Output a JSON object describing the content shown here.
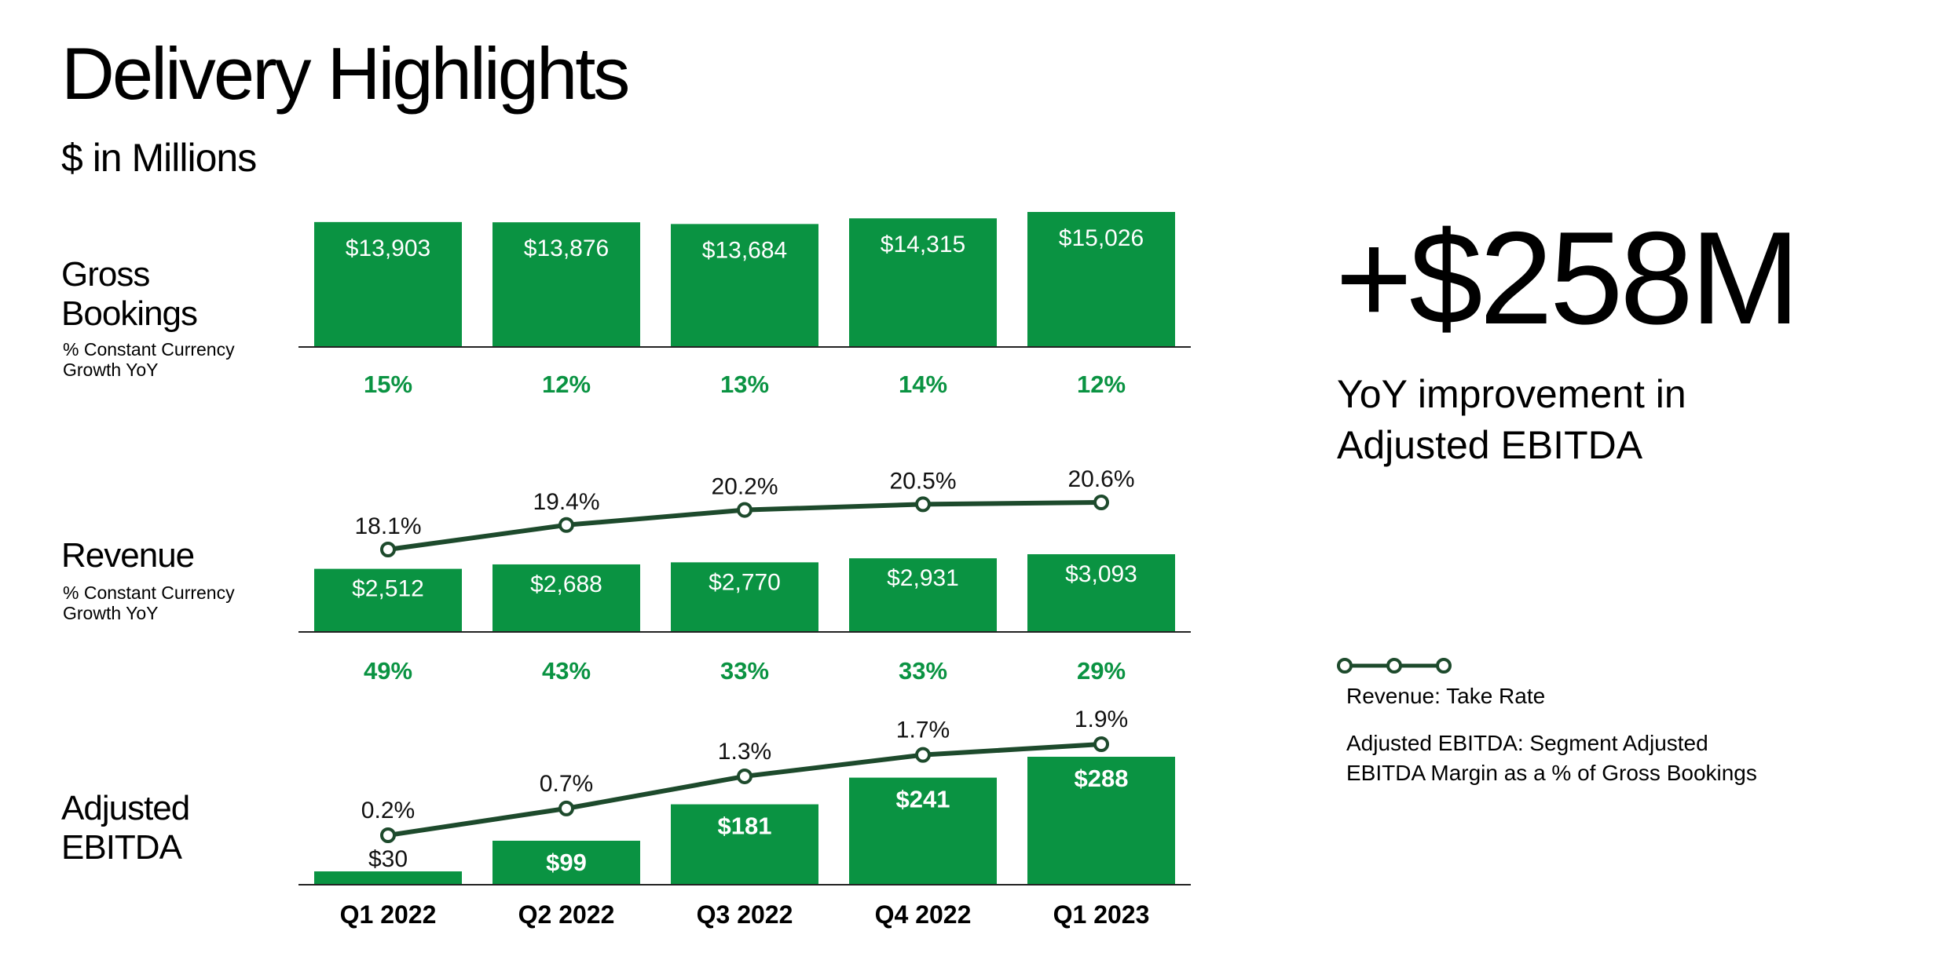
{
  "page": {
    "title": "Delivery Highlights",
    "subtitle": "$ in Millions",
    "row_labels": {
      "gross_bookings_line1": "Gross",
      "gross_bookings_line2": "Bookings",
      "gross_bookings_sub_line1": "% Constant Currency",
      "gross_bookings_sub_line2": "Growth YoY",
      "revenue": "Revenue",
      "revenue_sub_line1": "% Constant Currency",
      "revenue_sub_line2": "Growth YoY",
      "ebitda_line1": "Adjusted",
      "ebitda_line2": "EBITDA"
    },
    "callout": {
      "value": "+$258M",
      "caption": "YoY improvement in Adjusted EBITDA"
    },
    "legend": {
      "take_rate": "Revenue: Take Rate",
      "ebitda_margin": "Adjusted EBITDA: Segment Adjusted EBITDA Margin as a % of Gross Bookings"
    }
  },
  "colors": {
    "bar": "#0a9342",
    "line": "#1d4a2c",
    "growth_text": "#0a9342",
    "axis": "#222222"
  },
  "chart_data": [
    {
      "type": "bar",
      "name": "Gross Bookings",
      "categories": [
        "Q1 2022",
        "Q2 2022",
        "Q3 2022",
        "Q4 2022",
        "Q1 2023"
      ],
      "values": [
        13903,
        13876,
        13684,
        14315,
        15026
      ],
      "value_labels": [
        "$13,903",
        "$13,876",
        "$13,684",
        "$14,315",
        "$15,026"
      ],
      "growth_yoy": [
        "15%",
        "12%",
        "13%",
        "14%",
        "12%"
      ]
    },
    {
      "type": "bar",
      "name": "Revenue",
      "categories": [
        "Q1 2022",
        "Q2 2022",
        "Q3 2022",
        "Q4 2022",
        "Q1 2023"
      ],
      "values": [
        2512,
        2688,
        2770,
        2931,
        3093
      ],
      "value_labels": [
        "$2,512",
        "$2,688",
        "$2,770",
        "$2,931",
        "$3,093"
      ],
      "growth_yoy": [
        "49%",
        "43%",
        "33%",
        "33%",
        "29%"
      ],
      "line": {
        "values": [
          18.1,
          19.4,
          20.2,
          20.5,
          20.6
        ],
        "labels": [
          "18.1%",
          "19.4%",
          "20.2%",
          "20.5%",
          "20.6%"
        ]
      }
    },
    {
      "type": "bar",
      "name": "Adjusted EBITDA",
      "categories": [
        "Q1 2022",
        "Q2 2022",
        "Q3 2022",
        "Q4 2022",
        "Q1 2023"
      ],
      "values": [
        30,
        99,
        181,
        241,
        288
      ],
      "value_labels": [
        "$30",
        "$99",
        "$181",
        "$241",
        "$288"
      ],
      "line": {
        "values": [
          0.2,
          0.7,
          1.3,
          1.7,
          1.9
        ],
        "labels": [
          "0.2%",
          "0.7%",
          "1.3%",
          "1.7%",
          "1.9%"
        ]
      }
    }
  ]
}
